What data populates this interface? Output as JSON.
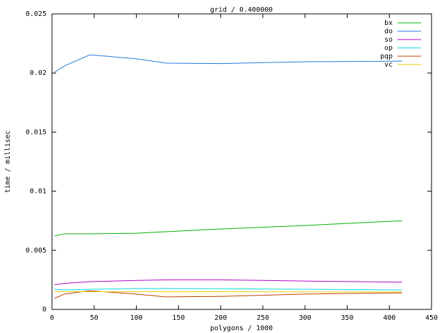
{
  "chart_data": {
    "type": "line",
    "title": "grid / 0.400000",
    "x_label": "polygons / 1000",
    "y_label": "time / millisec",
    "xlim": [
      0,
      450
    ],
    "xticks": [
      0,
      50,
      100,
      150,
      200,
      250,
      300,
      350,
      400,
      450
    ],
    "ylim": [
      0,
      0.025
    ],
    "yticks": [
      0,
      0.005,
      0.01,
      0.015,
      0.02,
      0.025
    ],
    "legend": "top-right",
    "x": [
      3,
      15,
      45,
      100,
      135,
      200,
      300,
      415
    ],
    "series": [
      {
        "name": "bx",
        "color": "#00b000",
        "values": [
          0.00622,
          0.0064,
          0.0064,
          0.00645,
          0.00657,
          0.0068,
          0.0071,
          0.0075
        ]
      },
      {
        "name": "do",
        "color": "#1e78d8",
        "values": [
          0.02007,
          0.0206,
          0.02154,
          0.0212,
          0.02083,
          0.0208,
          0.02095,
          0.021
        ]
      },
      {
        "name": "so",
        "color": "#b000c8",
        "values": [
          0.0021,
          0.0022,
          0.00235,
          0.00245,
          0.0025,
          0.0025,
          0.0024,
          0.0023
        ]
      },
      {
        "name": "op",
        "color": "#00d8d8",
        "values": [
          0.0017,
          0.00165,
          0.0017,
          0.00176,
          0.00176,
          0.00175,
          0.0017,
          0.00164
        ]
      },
      {
        "name": "pqp",
        "color": "#b84000",
        "values": [
          0.00094,
          0.0013,
          0.00158,
          0.0013,
          0.00106,
          0.0011,
          0.0013,
          0.0014
        ]
      },
      {
        "name": "vc",
        "color": "#e8c800",
        "values": [
          0.0015,
          0.0015,
          0.0015,
          0.0015,
          0.0015,
          0.0015,
          0.00148,
          0.00147
        ]
      }
    ]
  }
}
